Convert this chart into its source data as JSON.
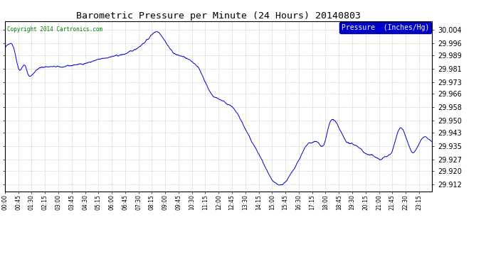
{
  "title": "Barometric Pressure per Minute (24 Hours) 20140803",
  "copyright_text": "Copyright 2014 Cartronics.com",
  "legend_label": "Pressure  (Inches/Hg)",
  "line_color": "#0000cc",
  "background_color": "#ffffff",
  "grid_color": "#aaaaaa",
  "yticks": [
    29.912,
    29.92,
    29.927,
    29.935,
    29.943,
    29.95,
    29.958,
    29.966,
    29.973,
    29.981,
    29.989,
    29.996,
    30.004
  ],
  "ylim": [
    29.908,
    30.009
  ],
  "xtick_labels": [
    "00:00",
    "00:45",
    "01:30",
    "02:15",
    "03:00",
    "03:45",
    "04:30",
    "05:15",
    "06:00",
    "06:45",
    "07:30",
    "08:15",
    "09:00",
    "09:45",
    "10:30",
    "11:15",
    "12:00",
    "12:45",
    "13:30",
    "14:15",
    "15:00",
    "15:45",
    "16:30",
    "17:15",
    "18:00",
    "18:45",
    "19:30",
    "20:15",
    "21:00",
    "21:45",
    "22:30",
    "23:15"
  ]
}
